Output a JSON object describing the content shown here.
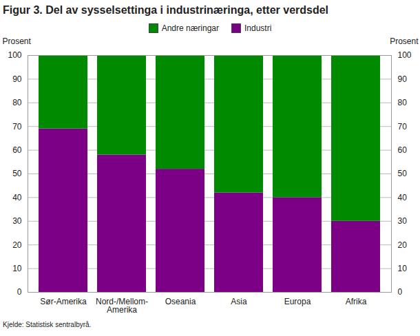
{
  "chart_data": {
    "type": "bar",
    "title": "Figur 3. Del av sysselsettinga i industrinæringa, etter verdsdel",
    "categories": [
      "Sør-Amerika",
      "Nord-/Mellom-Amerika",
      "Oseania",
      "Asia",
      "Europa",
      "Afrika"
    ],
    "series": [
      {
        "name": "Industri",
        "color": "#7b0086",
        "values": [
          69,
          58,
          52,
          42,
          40,
          30
        ]
      },
      {
        "name": "Andre næringar",
        "color": "#008a00",
        "values": [
          31,
          42,
          48,
          58,
          60,
          70
        ]
      }
    ],
    "ylabel": "Prosent",
    "y2label": "Prosent",
    "ylim": [
      0,
      100
    ],
    "yticks": [
      0,
      10,
      20,
      30,
      40,
      50,
      60,
      70,
      80,
      90,
      100
    ],
    "y2lim": [
      0,
      100
    ],
    "y2ticks": [
      0,
      10,
      20,
      30,
      40,
      50,
      60,
      70,
      80,
      90,
      100
    ],
    "stacked": true,
    "grid": true,
    "legend": "top",
    "source": "Kjelde: Statistisk sentralbyrå."
  }
}
